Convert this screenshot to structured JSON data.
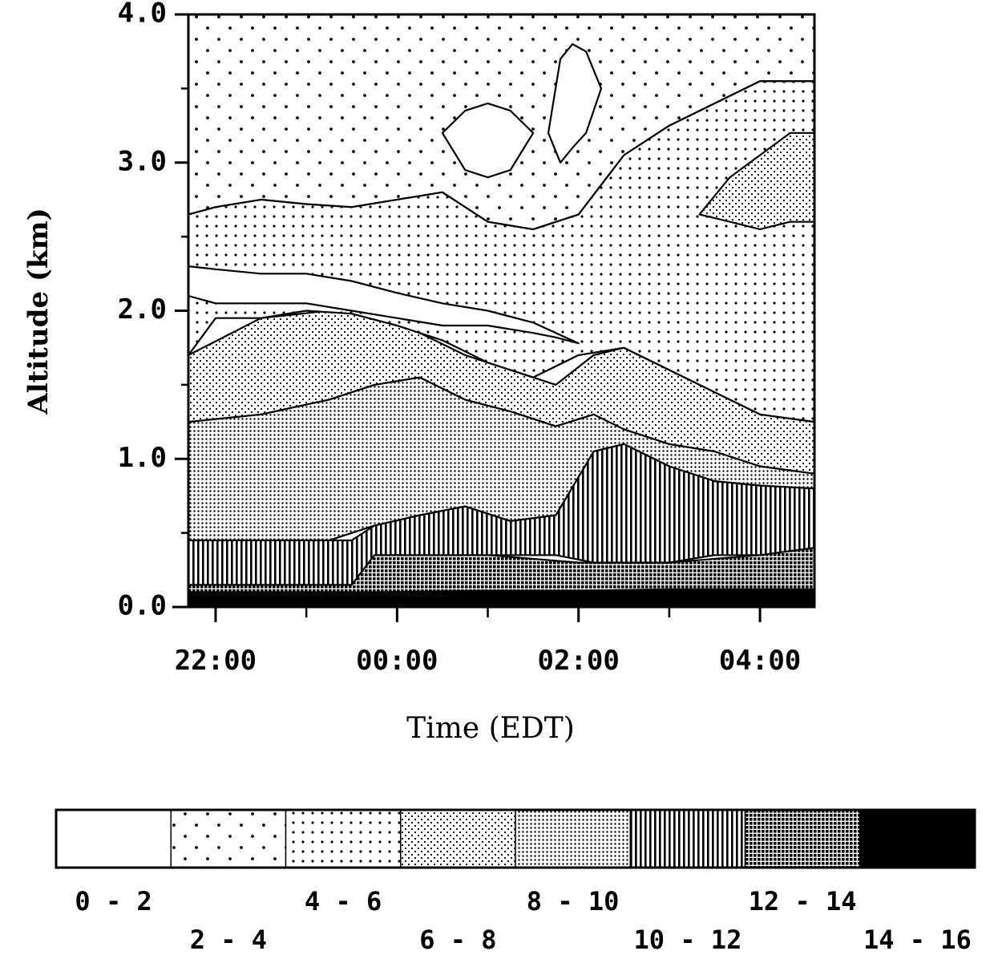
{
  "chart_data": {
    "type": "heatmap",
    "title": "",
    "xlabel": "Time (EDT)",
    "ylabel": "Altitude (km)",
    "xlim": [
      "21:42",
      "04:36"
    ],
    "ylim": [
      0,
      4
    ],
    "x_tick_labels": [
      "22:00",
      "00:00",
      "02:00",
      "04:00"
    ],
    "y_tick_labels": [
      "0.0",
      "1.0",
      "2.0",
      "3.0",
      "4.0"
    ],
    "legend_placement": "bottom",
    "legend": [
      "0 - 2",
      "2 - 4",
      "4 - 6",
      "6 - 8",
      "8 - 10",
      "10 - 12",
      "12 - 14",
      "14 - 16"
    ],
    "regions": [
      {
        "class": "14 - 16",
        "times": [
          "21:42",
          "04:36"
        ],
        "lower": [
          0.0,
          0.0
        ],
        "upper": [
          0.1,
          0.12
        ]
      },
      {
        "class": "12 - 14",
        "times": [
          "21:42",
          "23:30",
          "23:45",
          "01:00",
          "02:00",
          "03:00",
          "04:00",
          "04:36"
        ],
        "lower": [
          0.1,
          0.1,
          0.1,
          0.11,
          0.11,
          0.12,
          0.12,
          0.12
        ],
        "upper": [
          0.15,
          0.15,
          0.35,
          0.35,
          0.3,
          0.3,
          0.35,
          0.4
        ]
      },
      {
        "class": "10 - 12",
        "times": [
          "21:42",
          "23:30",
          "23:45",
          "00:15",
          "00:45",
          "01:15",
          "01:45",
          "02:10",
          "02:30",
          "03:00",
          "03:30",
          "04:00",
          "04:36"
        ],
        "lower": [
          0.15,
          0.15,
          0.35,
          0.35,
          0.35,
          0.35,
          0.35,
          0.3,
          0.3,
          0.3,
          0.35,
          0.35,
          0.4
        ],
        "upper": [
          0.45,
          0.45,
          0.55,
          0.62,
          0.68,
          0.58,
          0.62,
          1.05,
          1.1,
          0.95,
          0.85,
          0.82,
          0.8
        ]
      },
      {
        "class": "8 - 10",
        "times": [
          "21:42",
          "22:30",
          "23:15",
          "23:45",
          "00:15",
          "00:45",
          "01:15",
          "01:45",
          "02:10",
          "02:30",
          "03:00",
          "03:30",
          "04:00",
          "04:36"
        ],
        "lower": [
          0.45,
          0.45,
          0.45,
          0.55,
          0.62,
          0.68,
          0.58,
          0.62,
          1.05,
          1.1,
          0.95,
          0.85,
          0.82,
          0.8
        ],
        "upper": [
          1.25,
          1.3,
          1.4,
          1.5,
          1.55,
          1.4,
          1.32,
          1.22,
          1.3,
          1.2,
          1.1,
          1.05,
          0.95,
          0.9
        ]
      },
      {
        "class": "6 - 8",
        "times": [
          "21:42",
          "22:30",
          "23:15",
          "23:45",
          "00:15",
          "00:45",
          "01:15",
          "01:45",
          "02:10",
          "02:30",
          "03:00",
          "03:30",
          "04:00",
          "04:36"
        ],
        "lower": [
          1.25,
          1.3,
          1.4,
          1.5,
          1.55,
          1.4,
          1.32,
          1.22,
          1.3,
          1.2,
          1.1,
          1.05,
          0.95,
          0.9
        ],
        "upper": [
          1.7,
          1.95,
          2.0,
          1.98,
          1.85,
          1.7,
          1.6,
          1.5,
          1.7,
          1.75,
          1.6,
          1.45,
          1.3,
          1.25
        ]
      },
      {
        "class": "4 - 6",
        "times": [
          "21:42",
          "22:00",
          "22:30",
          "23:00",
          "23:30",
          "00:00",
          "00:30",
          "01:00",
          "01:30",
          "02:00",
          "02:30",
          "03:00",
          "03:30",
          "04:00",
          "04:36"
        ],
        "lower": [
          1.7,
          1.95,
          1.95,
          2.0,
          1.98,
          1.9,
          1.8,
          1.65,
          1.55,
          1.7,
          1.75,
          1.6,
          1.45,
          1.3,
          1.25
        ],
        "upper": [
          2.65,
          2.7,
          2.75,
          2.72,
          2.7,
          2.75,
          2.8,
          2.6,
          2.55,
          2.65,
          3.05,
          3.25,
          3.4,
          3.55,
          3.55
        ]
      },
      {
        "class": "2 - 4",
        "times": [
          "21:42",
          "22:00",
          "22:30",
          "23:00",
          "23:30",
          "00:00",
          "00:30",
          "01:00",
          "01:30",
          "02:00",
          "02:30",
          "03:00",
          "03:30",
          "04:00",
          "04:36"
        ],
        "lower": [
          2.65,
          2.7,
          2.75,
          2.72,
          2.7,
          2.75,
          2.8,
          2.6,
          2.55,
          2.65,
          3.05,
          3.25,
          3.4,
          3.55,
          3.55
        ],
        "upper": [
          4.0,
          4.0,
          4.0,
          4.0,
          4.0,
          4.0,
          4.0,
          4.0,
          4.0,
          4.0,
          4.0,
          4.0,
          4.0,
          4.0,
          4.0
        ]
      },
      {
        "class": "0 - 2",
        "times": [
          "21:42",
          "22:00",
          "22:30",
          "23:00",
          "23:30",
          "00:00",
          "00:30",
          "01:00",
          "01:30",
          "01:45",
          "02:00"
        ],
        "lower": [
          2.1,
          2.05,
          2.05,
          2.05,
          2.0,
          1.95,
          1.9,
          1.9,
          1.85,
          1.82,
          1.78
        ],
        "upper": [
          2.3,
          2.28,
          2.25,
          2.25,
          2.2,
          2.12,
          2.05,
          2.0,
          1.92,
          1.85,
          1.78
        ]
      },
      {
        "class": "0 - 2",
        "times": [
          "00:30",
          "00:45",
          "01:00",
          "01:15",
          "01:30"
        ],
        "lower": [
          3.2,
          2.95,
          2.9,
          2.95,
          3.2
        ],
        "upper": [
          3.2,
          3.35,
          3.4,
          3.35,
          3.2
        ]
      },
      {
        "class": "0 - 2",
        "times": [
          "01:40",
          "01:48",
          "01:56",
          "02:05",
          "02:15"
        ],
        "lower": [
          3.2,
          3.0,
          3.1,
          3.2,
          3.5
        ],
        "upper": [
          3.2,
          3.7,
          3.8,
          3.75,
          3.5
        ]
      },
      {
        "class": "6 - 8",
        "times": [
          "03:20",
          "03:40",
          "04:00",
          "04:20",
          "04:36"
        ],
        "lower": [
          2.65,
          2.6,
          2.55,
          2.6,
          2.6
        ],
        "upper": [
          2.65,
          2.9,
          3.05,
          3.2,
          3.2
        ]
      }
    ]
  }
}
